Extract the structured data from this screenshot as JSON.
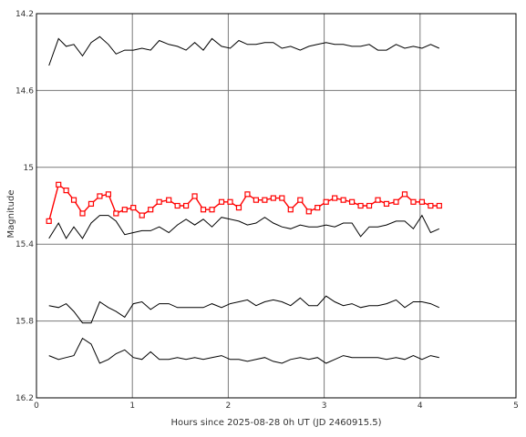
{
  "chart_data": {
    "type": "line",
    "xlabel": "Hours since 2025-08-28 0h UT (JD 2460915.5)",
    "ylabel": "Magnitude",
    "xlim": [
      0,
      5
    ],
    "ylim": [
      16.2,
      14.2
    ],
    "y_inverted": true,
    "grid": true,
    "x_ticks": [
      "0",
      "1",
      "2",
      "3",
      "4",
      "5"
    ],
    "y_ticks": [
      "14.2",
      "14.6",
      "15",
      "15.4",
      "15.8",
      "16.2"
    ],
    "x": [
      0.13,
      0.23,
      0.31,
      0.39,
      0.48,
      0.57,
      0.66,
      0.75,
      0.83,
      0.92,
      1.01,
      1.1,
      1.19,
      1.28,
      1.38,
      1.47,
      1.56,
      1.65,
      1.74,
      1.83,
      1.93,
      2.02,
      2.11,
      2.2,
      2.29,
      2.38,
      2.47,
      2.56,
      2.65,
      2.75,
      2.84,
      2.93,
      3.02,
      3.11,
      3.2,
      3.29,
      3.38,
      3.47,
      3.56,
      3.65,
      3.75,
      3.84,
      3.93,
      4.02,
      4.11,
      4.2
    ],
    "series": [
      {
        "color": "#000000",
        "marker": "none",
        "values": [
          14.47,
          14.33,
          14.37,
          14.36,
          14.42,
          14.35,
          14.32,
          14.36,
          14.41,
          14.39,
          14.39,
          14.38,
          14.39,
          14.34,
          14.36,
          14.37,
          14.39,
          14.35,
          14.39,
          14.33,
          14.37,
          14.38,
          14.34,
          14.36,
          14.36,
          14.35,
          14.35,
          14.38,
          14.37,
          14.39,
          14.37,
          14.36,
          14.35,
          14.36,
          14.36,
          14.37,
          14.37,
          14.36,
          14.39,
          14.39,
          14.36,
          14.38,
          14.37,
          14.38,
          14.36,
          14.38
        ]
      },
      {
        "color": "#ff0000",
        "marker": "square",
        "values": [
          15.28,
          15.09,
          15.12,
          15.17,
          15.24,
          15.19,
          15.15,
          15.14,
          15.24,
          15.22,
          15.21,
          15.25,
          15.22,
          15.18,
          15.17,
          15.2,
          15.2,
          15.15,
          15.22,
          15.22,
          15.18,
          15.18,
          15.21,
          15.14,
          15.17,
          15.17,
          15.16,
          15.16,
          15.22,
          15.17,
          15.23,
          15.21,
          15.18,
          15.16,
          15.17,
          15.18,
          15.2,
          15.2,
          15.17,
          15.19,
          15.18,
          15.14,
          15.18,
          15.18,
          15.2,
          15.2
        ]
      },
      {
        "color": "#000000",
        "marker": "none",
        "values": [
          15.37,
          15.29,
          15.37,
          15.31,
          15.37,
          15.29,
          15.25,
          15.25,
          15.28,
          15.35,
          15.34,
          15.33,
          15.33,
          15.31,
          15.34,
          15.3,
          15.27,
          15.3,
          15.27,
          15.31,
          15.26,
          15.27,
          15.28,
          15.3,
          15.29,
          15.26,
          15.29,
          15.31,
          15.32,
          15.3,
          15.31,
          15.31,
          15.3,
          15.31,
          15.29,
          15.29,
          15.36,
          15.31,
          15.31,
          15.3,
          15.28,
          15.28,
          15.32,
          15.25,
          15.34,
          15.32
        ]
      },
      {
        "color": "#000000",
        "marker": "none",
        "values": [
          15.72,
          15.73,
          15.71,
          15.75,
          15.81,
          15.81,
          15.7,
          15.73,
          15.75,
          15.78,
          15.71,
          15.7,
          15.74,
          15.71,
          15.71,
          15.73,
          15.73,
          15.73,
          15.73,
          15.71,
          15.73,
          15.71,
          15.7,
          15.69,
          15.72,
          15.7,
          15.69,
          15.7,
          15.72,
          15.68,
          15.72,
          15.72,
          15.67,
          15.7,
          15.72,
          15.71,
          15.73,
          15.72,
          15.72,
          15.71,
          15.69,
          15.73,
          15.7,
          15.7,
          15.71,
          15.73
        ]
      },
      {
        "color": "#000000",
        "marker": "none",
        "values": [
          15.98,
          16.0,
          15.99,
          15.98,
          15.89,
          15.92,
          16.02,
          16.0,
          15.97,
          15.95,
          15.99,
          16.0,
          15.96,
          16.0,
          16.0,
          15.99,
          16.0,
          15.99,
          16.0,
          15.99,
          15.98,
          16.0,
          16.0,
          16.01,
          16.0,
          15.99,
          16.01,
          16.02,
          16.0,
          15.99,
          16.0,
          15.99,
          16.02,
          16.0,
          15.98,
          15.99,
          15.99,
          15.99,
          15.99,
          16.0,
          15.99,
          16.0,
          15.98,
          16.0,
          15.98,
          15.99
        ]
      }
    ]
  }
}
